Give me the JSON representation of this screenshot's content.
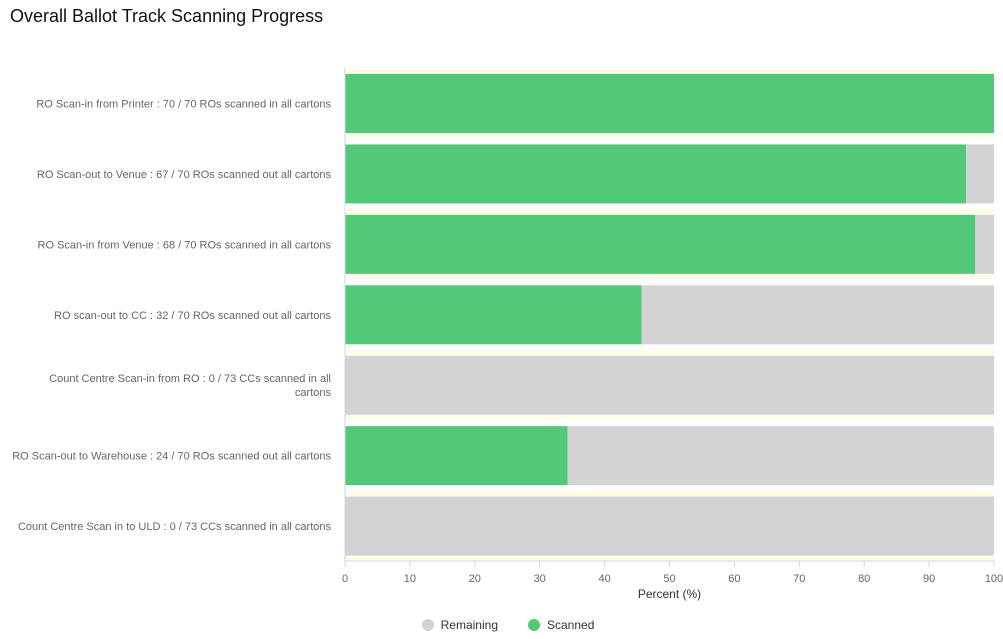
{
  "title": "Overall Ballot Track Scanning Progress",
  "colors": {
    "scanned": "#52c878",
    "remaining": "#d3d3d3",
    "band": "#fffde8"
  },
  "chart_data": {
    "type": "bar",
    "orientation": "horizontal",
    "stacked": true,
    "title": "Overall Ballot Track Scanning Progress",
    "xlabel": "Percent (%)",
    "ylabel": "",
    "xlim": [
      0,
      100
    ],
    "xticks": [
      0,
      10,
      20,
      30,
      40,
      50,
      60,
      70,
      80,
      90,
      100
    ],
    "categories": [
      "RO Scan-in from Printer : 70 / 70 ROs scanned in all cartons",
      "RO Scan-out to Venue : 67 / 70 ROs scanned out all cartons",
      "RO Scan-in from Venue : 68 / 70 ROs scanned in all cartons",
      "RO scan-out to CC : 32 / 70 ROs scanned out all cartons",
      "Count Centre Scan-in from RO : 0 / 73 CCs scanned in all cartons",
      "RO Scan-out to Warehouse : 24 / 70 ROs scanned out all cartons",
      "Count Centre Scan in to ULD : 0 / 73 CCs scanned in all cartons"
    ],
    "series": [
      {
        "name": "Scanned",
        "values": [
          100,
          95.7,
          97.1,
          45.7,
          0,
          34.3,
          0
        ]
      },
      {
        "name": "Remaining",
        "values": [
          0,
          4.3,
          2.9,
          54.3,
          100,
          65.7,
          100
        ]
      }
    ],
    "legend_position": "bottom",
    "legend_order": [
      "Remaining",
      "Scanned"
    ],
    "grid": false
  }
}
